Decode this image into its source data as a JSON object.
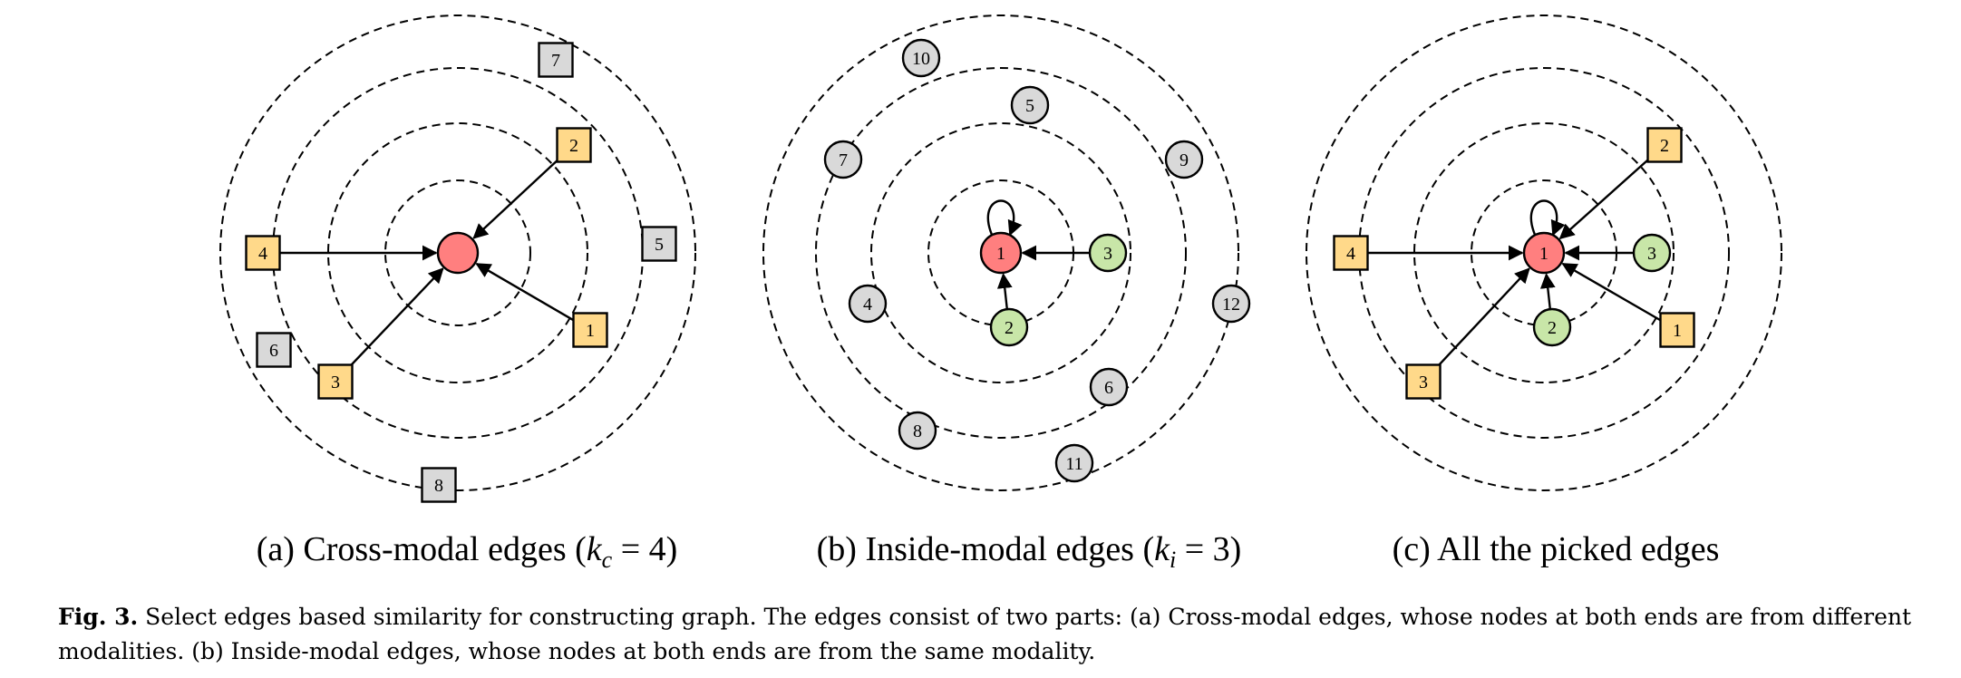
{
  "colors": {
    "center": "#ff7f7f",
    "cross_modal": "#ffd98a",
    "inside_modal": "#c8e6a8",
    "unselected": "#d9d9d9"
  },
  "panels": [
    {
      "id": "a",
      "subcaption_prefix": "(a) Cross-modal edges (",
      "subcaption_var": "k",
      "subcaption_sub": "c",
      "subcaption_suffix": " = 4)",
      "center_label": "",
      "self_loop": false,
      "nodes": [
        {
          "label": "7",
          "shape": "square",
          "role": "unselected"
        },
        {
          "label": "2",
          "shape": "square",
          "role": "cross_modal",
          "edge": true
        },
        {
          "label": "5",
          "shape": "square",
          "role": "unselected"
        },
        {
          "label": "4",
          "shape": "square",
          "role": "cross_modal",
          "edge": true
        },
        {
          "label": "1",
          "shape": "square",
          "role": "cross_modal",
          "edge": true
        },
        {
          "label": "6",
          "shape": "square",
          "role": "unselected"
        },
        {
          "label": "3",
          "shape": "square",
          "role": "cross_modal",
          "edge": true
        },
        {
          "label": "8",
          "shape": "square",
          "role": "unselected"
        }
      ]
    },
    {
      "id": "b",
      "subcaption_prefix": "(b) Inside-modal edges (",
      "subcaption_var": "k",
      "subcaption_sub": "i",
      "subcaption_suffix": " = 3)",
      "center_label": "1",
      "self_loop": true,
      "nodes": [
        {
          "label": "10",
          "shape": "circle",
          "role": "unselected"
        },
        {
          "label": "5",
          "shape": "circle",
          "role": "unselected"
        },
        {
          "label": "7",
          "shape": "circle",
          "role": "unselected"
        },
        {
          "label": "9",
          "shape": "circle",
          "role": "unselected"
        },
        {
          "label": "3",
          "shape": "circle",
          "role": "inside_modal",
          "edge": true
        },
        {
          "label": "4",
          "shape": "circle",
          "role": "unselected"
        },
        {
          "label": "2",
          "shape": "circle",
          "role": "inside_modal",
          "edge": true
        },
        {
          "label": "12",
          "shape": "circle",
          "role": "unselected"
        },
        {
          "label": "6",
          "shape": "circle",
          "role": "unselected"
        },
        {
          "label": "8",
          "shape": "circle",
          "role": "unselected"
        },
        {
          "label": "11",
          "shape": "circle",
          "role": "unselected"
        }
      ]
    },
    {
      "id": "c",
      "subcaption_prefix": "(c) All the picked edges",
      "subcaption_var": "",
      "subcaption_sub": "",
      "subcaption_suffix": "",
      "center_label": "1",
      "self_loop": true,
      "nodes": [
        {
          "label": "2",
          "shape": "square",
          "role": "cross_modal",
          "edge": true
        },
        {
          "label": "4",
          "shape": "square",
          "role": "cross_modal",
          "edge": true
        },
        {
          "label": "3",
          "shape": "circle",
          "role": "inside_modal",
          "edge": true
        },
        {
          "label": "2",
          "shape": "circle",
          "role": "inside_modal",
          "edge": true
        },
        {
          "label": "1",
          "shape": "square",
          "role": "cross_modal",
          "edge": true
        },
        {
          "label": "3",
          "shape": "square",
          "role": "cross_modal",
          "edge": true
        }
      ]
    }
  ],
  "caption": {
    "label": "Fig. 3.",
    "text": " Select edges based similarity for constructing graph. The edges consist of two parts: (a) Cross-modal edges, whose nodes at both ends are from different modalities. (b) Inside-modal edges, whose nodes at both ends are from the same modality."
  }
}
